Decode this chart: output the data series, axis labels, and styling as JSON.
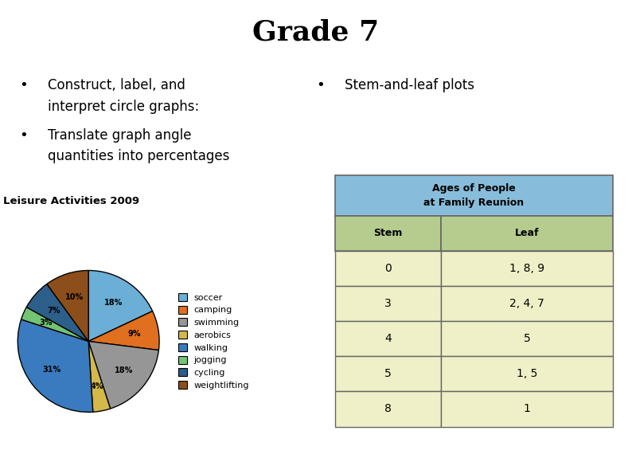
{
  "title": "Grade 7",
  "bullet1_line1": "Construct, label, and",
  "bullet1_line2": "interpret circle graphs:",
  "bullet2_line1": "Translate graph angle",
  "bullet2_line2": "quantities into percentages",
  "bullet3": "Stem-and-leaf plots",
  "pie_title": "Leisure Activities 2009",
  "pie_labels": [
    "soccer",
    "camping",
    "swimming",
    "aerobics",
    "walking",
    "jogging",
    "cycling",
    "weightlifting"
  ],
  "pie_values": [
    18,
    9,
    18,
    4,
    31,
    3,
    7,
    10
  ],
  "pie_colors": [
    "#6baed6",
    "#e07020",
    "#969696",
    "#d4b84a",
    "#3a7abf",
    "#74c476",
    "#2c5f8a",
    "#8c4e1a"
  ],
  "table_title": "Ages of People\nat Family Reunion",
  "table_header_bg": "#87BDDA",
  "table_subheader_bg": "#b5cc8e",
  "table_cell_bg": "#f0f0c8",
  "table_stems": [
    "0",
    "3",
    "4",
    "5",
    "8"
  ],
  "table_leaves": [
    "1, 8, 9",
    "2, 4, 7",
    "5",
    "1, 5",
    "1"
  ],
  "bg_color": "#ffffff"
}
